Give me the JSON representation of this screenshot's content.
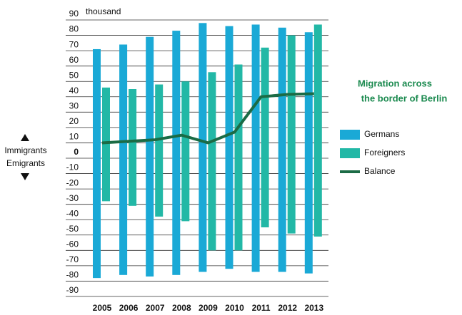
{
  "chart_data": {
    "type": "bar_line",
    "title": [
      "Migration across",
      "the border of Berlin"
    ],
    "unit": "thousand",
    "up_label": "Immigrants",
    "down_label": "Emigrants",
    "categories": [
      "2005",
      "2006",
      "2007",
      "2008",
      "2009",
      "2010",
      "2011",
      "2012",
      "2013"
    ],
    "series": [
      {
        "name": "Germans",
        "color": "#1aa9d6",
        "immigrants": [
          71,
          74,
          79,
          83,
          88,
          86,
          87,
          85,
          82
        ],
        "emigrants": [
          -78,
          -76,
          -77,
          -76,
          -74,
          -72,
          -74,
          -74,
          -75
        ]
      },
      {
        "name": "Foreigners",
        "color": "#22b8a6",
        "immigrants": [
          46,
          45,
          48,
          50,
          56,
          61,
          72,
          80,
          87
        ],
        "emigrants": [
          -28,
          -31,
          -38,
          -41,
          -60,
          -60,
          -45,
          -49,
          -51
        ]
      },
      {
        "name": "Balance",
        "color": "#1b6b45",
        "values": [
          10,
          11,
          12,
          15,
          10,
          17,
          40,
          41.5,
          42
        ]
      }
    ],
    "ylim": [
      -90,
      90
    ],
    "yticks": [
      90,
      80,
      70,
      60,
      50,
      40,
      30,
      20,
      10,
      0,
      -10,
      -20,
      -30,
      -40,
      -50,
      -60,
      -70,
      -80,
      -90
    ]
  }
}
